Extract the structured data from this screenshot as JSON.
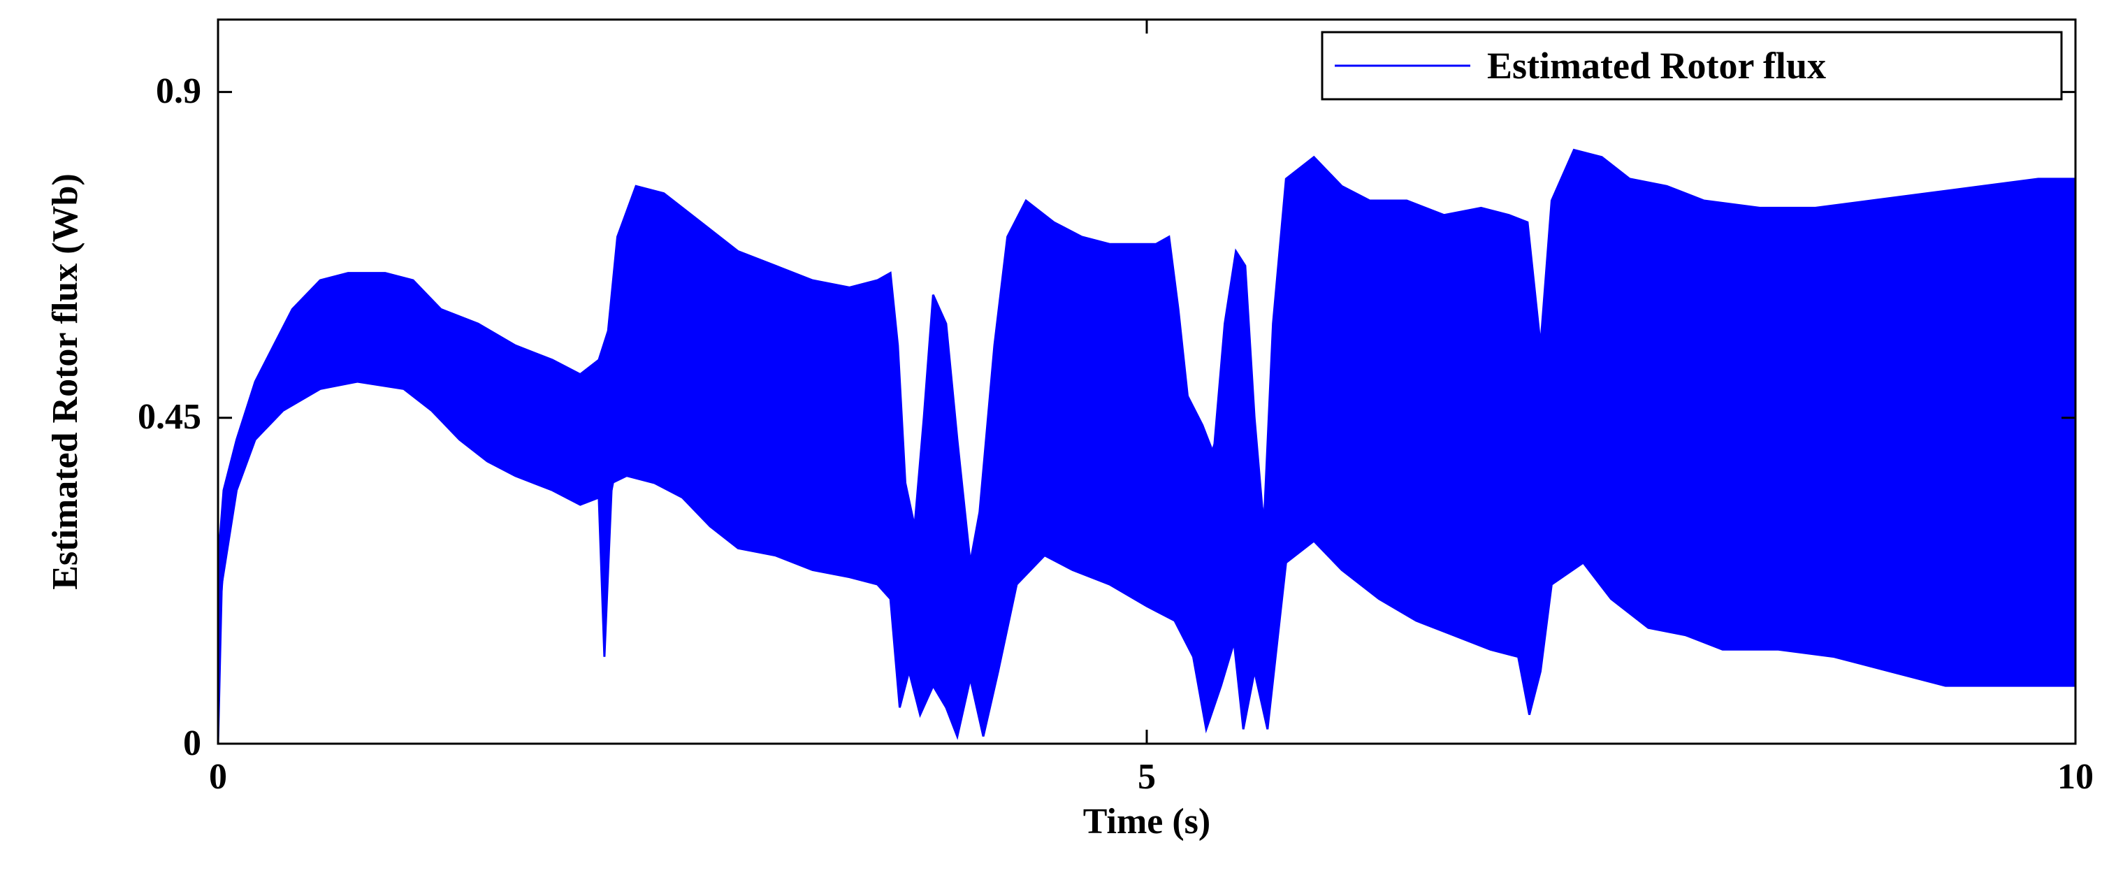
{
  "chart_data": {
    "type": "line",
    "title": "",
    "xlabel": "Time (s)",
    "ylabel": "Estimated Rotor flux (Wb)",
    "xlim": [
      0,
      10
    ],
    "ylim": [
      0,
      1.0
    ],
    "xticks": [
      0,
      5,
      10
    ],
    "xtick_labels": [
      "0",
      "5",
      "10"
    ],
    "yticks": [
      0,
      0.45,
      0.9
    ],
    "ytick_labels": [
      "0",
      "0.45",
      "0.9"
    ],
    "grid": false,
    "legend_position": "top-right",
    "series": [
      {
        "name": "Estimated Rotor flux",
        "color": "#0000ff",
        "style": "oscillating signal shown as upper and lower envelopes",
        "envelope_upper": [
          [
            0.0,
            0.25
          ],
          [
            0.03,
            0.35
          ],
          [
            0.1,
            0.42
          ],
          [
            0.2,
            0.5
          ],
          [
            0.3,
            0.55
          ],
          [
            0.4,
            0.6
          ],
          [
            0.55,
            0.64
          ],
          [
            0.7,
            0.65
          ],
          [
            0.9,
            0.65
          ],
          [
            1.05,
            0.64
          ],
          [
            1.2,
            0.6
          ],
          [
            1.4,
            0.58
          ],
          [
            1.6,
            0.55
          ],
          [
            1.8,
            0.53
          ],
          [
            1.95,
            0.51
          ],
          [
            2.05,
            0.53
          ],
          [
            2.1,
            0.57
          ],
          [
            2.15,
            0.7
          ],
          [
            2.25,
            0.77
          ],
          [
            2.4,
            0.76
          ],
          [
            2.6,
            0.72
          ],
          [
            2.8,
            0.68
          ],
          [
            3.0,
            0.66
          ],
          [
            3.2,
            0.64
          ],
          [
            3.4,
            0.63
          ],
          [
            3.55,
            0.64
          ],
          [
            3.62,
            0.65
          ],
          [
            3.66,
            0.55
          ],
          [
            3.7,
            0.36
          ],
          [
            3.75,
            0.3
          ],
          [
            3.8,
            0.45
          ],
          [
            3.85,
            0.62
          ],
          [
            3.92,
            0.58
          ],
          [
            3.98,
            0.42
          ],
          [
            4.05,
            0.25
          ],
          [
            4.1,
            0.32
          ],
          [
            4.18,
            0.55
          ],
          [
            4.25,
            0.7
          ],
          [
            4.35,
            0.75
          ],
          [
            4.5,
            0.72
          ],
          [
            4.65,
            0.7
          ],
          [
            4.8,
            0.69
          ],
          [
            4.95,
            0.69
          ],
          [
            5.05,
            0.69
          ],
          [
            5.12,
            0.7
          ],
          [
            5.17,
            0.6
          ],
          [
            5.22,
            0.48
          ],
          [
            5.3,
            0.44
          ],
          [
            5.36,
            0.4
          ],
          [
            5.42,
            0.58
          ],
          [
            5.48,
            0.68
          ],
          [
            5.53,
            0.66
          ],
          [
            5.58,
            0.45
          ],
          [
            5.63,
            0.3
          ],
          [
            5.68,
            0.58
          ],
          [
            5.75,
            0.78
          ],
          [
            5.9,
            0.81
          ],
          [
            6.05,
            0.77
          ],
          [
            6.2,
            0.75
          ],
          [
            6.4,
            0.75
          ],
          [
            6.6,
            0.73
          ],
          [
            6.8,
            0.74
          ],
          [
            6.95,
            0.73
          ],
          [
            7.05,
            0.72
          ],
          [
            7.12,
            0.55
          ],
          [
            7.18,
            0.75
          ],
          [
            7.3,
            0.82
          ],
          [
            7.45,
            0.81
          ],
          [
            7.6,
            0.78
          ],
          [
            7.8,
            0.77
          ],
          [
            8.0,
            0.75
          ],
          [
            8.3,
            0.74
          ],
          [
            8.6,
            0.74
          ],
          [
            8.9,
            0.75
          ],
          [
            9.2,
            0.76
          ],
          [
            9.5,
            0.77
          ],
          [
            9.8,
            0.78
          ],
          [
            10.0,
            0.78
          ]
        ],
        "envelope_lower": [
          [
            0.0,
            0.0
          ],
          [
            0.02,
            0.22
          ],
          [
            0.1,
            0.35
          ],
          [
            0.2,
            0.42
          ],
          [
            0.35,
            0.46
          ],
          [
            0.55,
            0.49
          ],
          [
            0.75,
            0.5
          ],
          [
            1.0,
            0.49
          ],
          [
            1.15,
            0.46
          ],
          [
            1.3,
            0.42
          ],
          [
            1.45,
            0.39
          ],
          [
            1.6,
            0.37
          ],
          [
            1.8,
            0.35
          ],
          [
            1.95,
            0.33
          ],
          [
            2.05,
            0.34
          ],
          [
            2.08,
            0.12
          ],
          [
            2.12,
            0.36
          ],
          [
            2.2,
            0.37
          ],
          [
            2.35,
            0.36
          ],
          [
            2.5,
            0.34
          ],
          [
            2.65,
            0.3
          ],
          [
            2.8,
            0.27
          ],
          [
            3.0,
            0.26
          ],
          [
            3.2,
            0.24
          ],
          [
            3.4,
            0.23
          ],
          [
            3.55,
            0.22
          ],
          [
            3.62,
            0.2
          ],
          [
            3.67,
            0.05
          ],
          [
            3.72,
            0.1
          ],
          [
            3.78,
            0.04
          ],
          [
            3.85,
            0.08
          ],
          [
            3.92,
            0.05
          ],
          [
            3.98,
            0.01
          ],
          [
            4.05,
            0.09
          ],
          [
            4.12,
            0.01
          ],
          [
            4.2,
            0.1
          ],
          [
            4.3,
            0.22
          ],
          [
            4.45,
            0.26
          ],
          [
            4.6,
            0.24
          ],
          [
            4.8,
            0.22
          ],
          [
            5.0,
            0.19
          ],
          [
            5.15,
            0.17
          ],
          [
            5.25,
            0.12
          ],
          [
            5.32,
            0.02
          ],
          [
            5.4,
            0.08
          ],
          [
            5.47,
            0.14
          ],
          [
            5.52,
            0.02
          ],
          [
            5.58,
            0.1
          ],
          [
            5.65,
            0.02
          ],
          [
            5.75,
            0.25
          ],
          [
            5.9,
            0.28
          ],
          [
            6.05,
            0.24
          ],
          [
            6.25,
            0.2
          ],
          [
            6.45,
            0.17
          ],
          [
            6.65,
            0.15
          ],
          [
            6.85,
            0.13
          ],
          [
            7.0,
            0.12
          ],
          [
            7.06,
            0.04
          ],
          [
            7.12,
            0.1
          ],
          [
            7.18,
            0.22
          ],
          [
            7.35,
            0.25
          ],
          [
            7.5,
            0.2
          ],
          [
            7.7,
            0.16
          ],
          [
            7.9,
            0.15
          ],
          [
            8.1,
            0.13
          ],
          [
            8.4,
            0.13
          ],
          [
            8.7,
            0.12
          ],
          [
            9.0,
            0.1
          ],
          [
            9.3,
            0.08
          ],
          [
            9.6,
            0.08
          ],
          [
            9.9,
            0.08
          ],
          [
            10.0,
            0.08
          ]
        ]
      }
    ]
  }
}
